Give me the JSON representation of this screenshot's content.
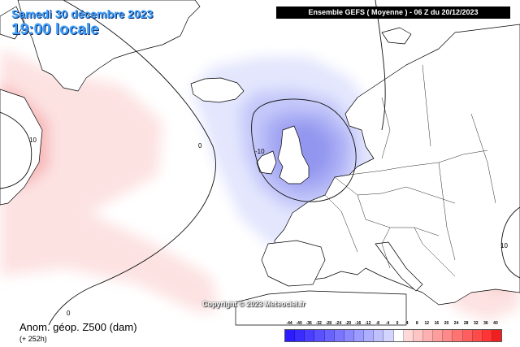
{
  "header": {
    "date": "Samedi 30 décembre 2023",
    "time": "19:00 locale",
    "model": "Ensemble GEFS  ( Moyenne )  -  06 Z du 20/12/2023"
  },
  "map": {
    "contour_labels": [
      "10",
      "0",
      "-10",
      "0",
      "10"
    ],
    "colors": {
      "positive": "#f7a9a9",
      "negative": "#8f93ef",
      "land": "#ffffff",
      "coast": "#000000"
    }
  },
  "copyright": "Copyright © 2023 Meteociel.fr",
  "legend": {
    "title": "Anom. géop. Z500 (dam)",
    "lead": "(+ 252h)",
    "ticks": [
      "-44",
      "-40",
      "-36",
      "-32",
      "-28",
      "-24",
      "-20",
      "-16",
      "-12",
      "-8",
      "-4",
      "0",
      "4",
      "8",
      "12",
      "16",
      "20",
      "24",
      "28",
      "32",
      "36",
      "40"
    ],
    "colors": [
      "#2b1dff",
      "#3a2cff",
      "#4a3dff",
      "#5a50ff",
      "#6a62ff",
      "#7a75ff",
      "#8b88ff",
      "#9c9bff",
      "#adaeff",
      "#bfc1ff",
      "#d3d5ff",
      "#ffffff",
      "#ffd8d8",
      "#ffc4c4",
      "#ffb0b0",
      "#ff9c9c",
      "#ff8888",
      "#ff7373",
      "#ff5e5e",
      "#ff4a4a",
      "#ff3535",
      "#f02020"
    ]
  }
}
